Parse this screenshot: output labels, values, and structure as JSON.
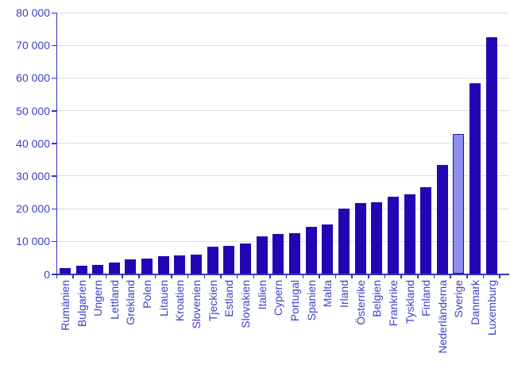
{
  "chart_data": {
    "type": "bar",
    "title": "",
    "xlabel": "",
    "ylabel": "",
    "categories": [
      "Rumänien",
      "Bulgarien",
      "Ungern",
      "Lettland",
      "Grekland",
      "Polen",
      "Litauen",
      "Kroatien",
      "Slovenien",
      "Tjeckien",
      "Estland",
      "Slovakien",
      "Italien",
      "Cypern",
      "Portugal",
      "Spanien",
      "Malta",
      "Irland",
      "Österrike",
      "Belgien",
      "Frankrike",
      "Tyskland",
      "Finland",
      "Nederländerna",
      "Sverige",
      "Danmark",
      "Luxemburg"
    ],
    "values": [
      1900,
      2600,
      2700,
      3500,
      4400,
      4700,
      5400,
      5600,
      6000,
      8400,
      8700,
      9300,
      11600,
      12300,
      12500,
      14400,
      15300,
      20100,
      21700,
      21900,
      23800,
      24500,
      26700,
      33400,
      42900,
      58400,
      72600
    ],
    "highlighted_category": "Sverige",
    "ylim": [
      0,
      80000
    ],
    "ytick_step": 10000,
    "yticks": [
      80000,
      70000,
      60000,
      50000,
      40000,
      30000,
      20000,
      10000,
      0
    ],
    "ytick_labels": [
      "80 000",
      "70 000",
      "60 000",
      "50 000",
      "40 000",
      "30 000",
      "20 000",
      "10 000",
      "0"
    ],
    "grid": true,
    "legend": "none",
    "colors": {
      "bar": "#2405b4",
      "highlight_fill": "#8f8ff0",
      "highlight_border": "#2405b4",
      "axis": "#3333bb",
      "label_text": "#3d3dcc",
      "gridline": "#dcdcee",
      "background": "#ffffff"
    }
  }
}
